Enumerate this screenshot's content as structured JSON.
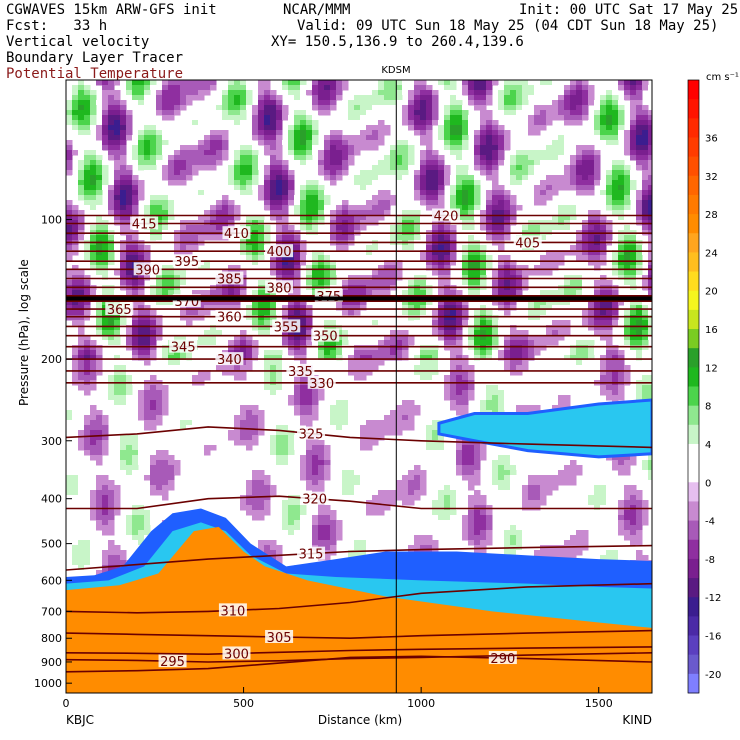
{
  "header": {
    "model": "CGWAVES 15km ARW-GFS init",
    "fcst": "Fcst:   33 h",
    "org": "NCAR/MMM",
    "init": "Init: 00 UTC Sat 17 May 25",
    "valid": "Valid: 09 UTC Sun 18 May 25 (04 CDT Sun 18 May 25)",
    "xy": "XY= 150.5,136.9 to 260.4,139.6",
    "fields": [
      "Vertical velocity",
      "Boundary Layer Tracer",
      "Potential Temperature"
    ]
  },
  "chart_data": {
    "type": "heatmap",
    "title": "",
    "xlabel": "Distance (km)",
    "ylabel": "Pressure (hPa), log scale",
    "left_station": "KBJC",
    "right_station": "KIND",
    "station_marker": {
      "name": "KDSM",
      "distance_km": 930
    },
    "x_range": [
      0,
      1650
    ],
    "y_range_hPa": [
      1050,
      50
    ],
    "y_scale": "log",
    "x_ticks": [
      0,
      500,
      1000,
      1500
    ],
    "y_ticks": [
      100,
      200,
      300,
      400,
      500,
      600,
      700,
      800,
      900,
      1000
    ],
    "colorbar": {
      "units": "cm s⁻¹",
      "levels": [
        -22,
        -20,
        -18,
        -16,
        -14,
        -12,
        -10,
        -8,
        -6,
        -4,
        -2,
        0,
        2,
        4,
        6,
        8,
        10,
        12,
        14,
        16,
        18,
        20,
        22,
        24,
        26,
        28,
        30,
        32,
        34,
        36,
        38,
        40,
        42
      ],
      "labels": [
        -20,
        -16,
        -12,
        -8,
        -4,
        0,
        4,
        8,
        12,
        16,
        20,
        24,
        28,
        32,
        36
      ],
      "colors": [
        "#7f7fff",
        "#6a5acd",
        "#5b3fbf",
        "#4b2aa6",
        "#3b1d8f",
        "#5a1a82",
        "#7a1f8f",
        "#8f2fa0",
        "#a85ab8",
        "#c88ad0",
        "#e6bff0",
        "#ffffff",
        "#ffffff",
        "#c8f5c8",
        "#8fe88f",
        "#4cd44c",
        "#1fb81f",
        "#2aa02a",
        "#7acc22",
        "#c8e61e",
        "#f5f51e",
        "#ffdc1e",
        "#ffbe1e",
        "#ffa51e",
        "#ff8c00",
        "#ff7a00",
        "#ff6600",
        "#ff5000",
        "#ff3c00",
        "#ff2a00",
        "#ff1400",
        "#ff0000"
      ]
    },
    "theta_contours": [
      {
        "theta": 290,
        "pressure_hPa": [
          945,
          940,
          930,
          905,
          880,
          875,
          885,
          900
        ],
        "label_km": 1230
      },
      {
        "theta": 295,
        "pressure_hPa": [
          890,
          893,
          900,
          895,
          885,
          880,
          870,
          860
        ],
        "label_km": 300
      },
      {
        "theta": 300,
        "pressure_hPa": [
          860,
          862,
          866,
          858,
          850,
          845,
          840,
          835
        ],
        "label_km": 480
      },
      {
        "theta": 305,
        "pressure_hPa": [
          780,
          785,
          790,
          795,
          800,
          790,
          780,
          770
        ],
        "label_km": 600
      },
      {
        "theta": 310,
        "pressure_hPa": [
          700,
          705,
          700,
          690,
          670,
          640,
          620,
          610
        ],
        "label_km": 470
      },
      {
        "theta": 315,
        "pressure_hPa": [
          570,
          555,
          540,
          530,
          520,
          515,
          510,
          505
        ],
        "label_km": 690
      },
      {
        "theta": 320,
        "pressure_hPa": [
          420,
          420,
          400,
          395,
          405,
          420,
          420,
          420
        ],
        "label_km": 700
      },
      {
        "theta": 325,
        "pressure_hPa": [
          295,
          290,
          280,
          285,
          295,
          300,
          305,
          310
        ],
        "label_km": 690
      },
      {
        "theta": 330,
        "pressure_hPa": [
          225,
          225,
          225,
          225,
          225,
          225,
          225,
          225
        ],
        "label_km": 720
      },
      {
        "theta": 335,
        "pressure_hPa": [
          212,
          212,
          212,
          212,
          212,
          212,
          212,
          212
        ],
        "label_km": 660
      },
      {
        "theta": 340,
        "pressure_hPa": [
          200,
          200,
          200,
          200,
          200,
          200,
          200,
          200
        ],
        "label_km": 460
      },
      {
        "theta": 345,
        "pressure_hPa": [
          188,
          188,
          188,
          188,
          188,
          188,
          188,
          188
        ],
        "label_km": 330
      },
      {
        "theta": 350,
        "pressure_hPa": [
          178,
          178,
          178,
          178,
          178,
          178,
          178,
          178
        ],
        "label_km": 730
      },
      {
        "theta": 355,
        "pressure_hPa": [
          170,
          170,
          170,
          170,
          170,
          170,
          170,
          170
        ],
        "label_km": 620
      },
      {
        "theta": 360,
        "pressure_hPa": [
          162,
          162,
          162,
          162,
          162,
          162,
          162,
          162
        ],
        "label_km": 460
      },
      {
        "theta": 365,
        "pressure_hPa": [
          156,
          156,
          156,
          156,
          156,
          156,
          156,
          156
        ],
        "label_km": 150
      },
      {
        "theta": 370,
        "pressure_hPa": [
          150,
          150,
          150,
          150,
          150,
          150,
          150,
          150
        ],
        "label_km": 340
      },
      {
        "theta": 375,
        "pressure_hPa": [
          146,
          146,
          146,
          146,
          146,
          146,
          146,
          146
        ],
        "label_km": 740
      },
      {
        "theta": 380,
        "pressure_hPa": [
          140,
          140,
          140,
          140,
          140,
          140,
          140,
          140
        ],
        "label_km": 600
      },
      {
        "theta": 385,
        "pressure_hPa": [
          134,
          134,
          134,
          134,
          134,
          134,
          134,
          134
        ],
        "label_km": 460
      },
      {
        "theta": 390,
        "pressure_hPa": [
          128,
          128,
          128,
          128,
          128,
          128,
          128,
          128
        ],
        "label_km": 230
      },
      {
        "theta": 395,
        "pressure_hPa": [
          123,
          123,
          123,
          123,
          123,
          123,
          123,
          123
        ],
        "label_km": 340
      },
      {
        "theta": 400,
        "pressure_hPa": [
          117,
          117,
          117,
          117,
          117,
          117,
          117,
          117
        ],
        "label_km": 600
      },
      {
        "theta": 405,
        "pressure_hPa": [
          112,
          112,
          112,
          112,
          112,
          112,
          112,
          112
        ],
        "label_km": 1300
      },
      {
        "theta": 410,
        "pressure_hPa": [
          107,
          107,
          107,
          107,
          107,
          107,
          107,
          107
        ],
        "label_km": 480
      },
      {
        "theta": 415,
        "pressure_hPa": [
          102,
          102,
          102,
          102,
          102,
          102,
          102,
          102
        ],
        "label_km": 220
      },
      {
        "theta": 420,
        "pressure_hPa": [
          98,
          98,
          98,
          98,
          98,
          98,
          98,
          98
        ],
        "label_km": 1070
      }
    ],
    "theta_profile_km": [
      0,
      200,
      400,
      600,
      800,
      1000,
      1300,
      1650
    ],
    "thick_contour": {
      "theta": 375,
      "pressure_hPa": 148
    }
  }
}
